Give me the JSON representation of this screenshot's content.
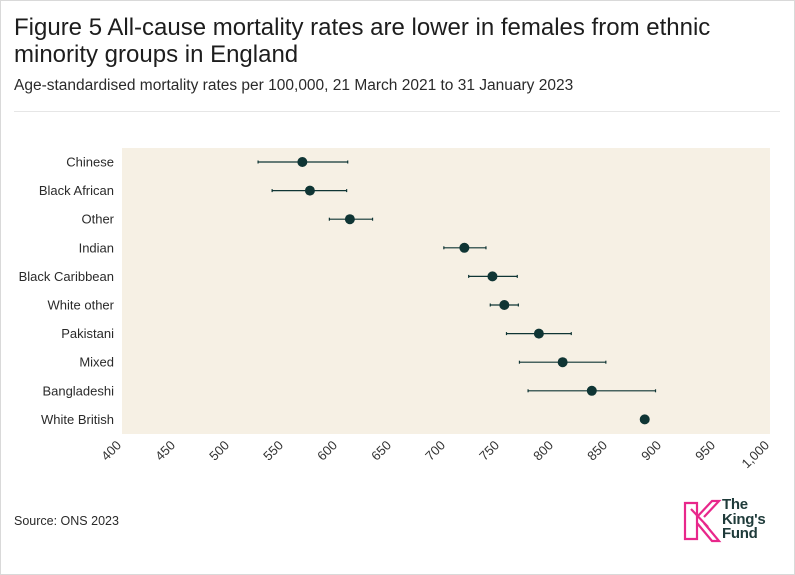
{
  "title": "Figure 5 All-cause mortality rates are lower in females from ethnic minority groups in England",
  "subtitle": "Age-standardised mortality rates per 100,000, 21 March 2021 to 31 January 2023",
  "source": "Source: ONS 2023",
  "logo": {
    "line1": "The",
    "line2": "King's",
    "line3": "Fund"
  },
  "colors": {
    "panel": "#f6f0e4",
    "marker": "#0f3534",
    "logo_mark": "#e8278b",
    "logo_text": "#1f3b3a"
  },
  "chart_data": {
    "type": "scatter",
    "subtype": "dot-plot-with-error-bars",
    "title": "Figure 5 All-cause mortality rates are lower in females from ethnic minority groups in England",
    "xlabel": "",
    "ylabel": "",
    "xlim": [
      400,
      1000
    ],
    "xticks": [
      400,
      450,
      500,
      550,
      600,
      650,
      700,
      750,
      800,
      850,
      900,
      950,
      1000
    ],
    "xtick_labels": [
      "400",
      "450",
      "500",
      "550",
      "600",
      "650",
      "700",
      "750",
      "800",
      "850",
      "900",
      "950",
      "1,000"
    ],
    "grid": false,
    "points": [
      {
        "label": "Chinese",
        "value": 567,
        "low": 526,
        "high": 609
      },
      {
        "label": "Black African",
        "value": 574,
        "low": 539,
        "high": 608
      },
      {
        "label": "Other",
        "value": 611,
        "low": 592,
        "high": 632
      },
      {
        "label": "Indian",
        "value": 717,
        "low": 698,
        "high": 737
      },
      {
        "label": "Black Caribbean",
        "value": 743,
        "low": 721,
        "high": 766
      },
      {
        "label": "White other",
        "value": 754,
        "low": 741,
        "high": 767
      },
      {
        "label": "Pakistani",
        "value": 786,
        "low": 756,
        "high": 816
      },
      {
        "label": "Mixed",
        "value": 808,
        "low": 768,
        "high": 848
      },
      {
        "label": "Bangladeshi",
        "value": 835,
        "low": 776,
        "high": 894
      },
      {
        "label": "White British",
        "value": 884,
        "low": 883,
        "high": 885
      }
    ]
  }
}
